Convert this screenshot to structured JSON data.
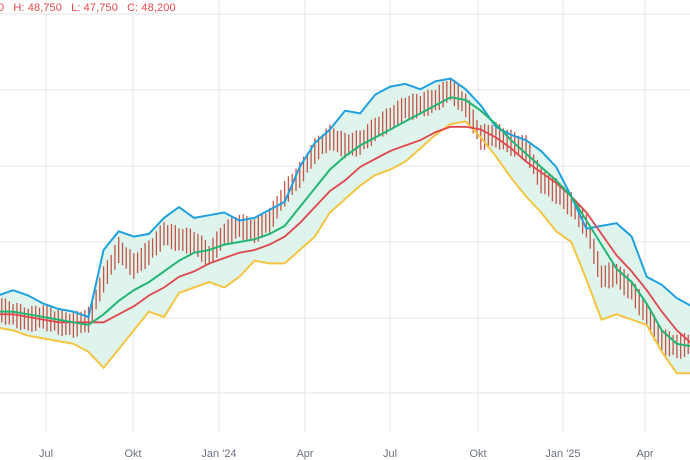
{
  "ohlc": {
    "open_tail": "0",
    "high": "H: 48,750",
    "low": "L: 47,750",
    "close": "C: 48,200"
  },
  "colors": {
    "upper_band": "#1fa1e0",
    "lower_band": "#f5c542",
    "band_fill": "#d9f2ea",
    "mid_line": "#22b573",
    "long_ma": "#e0474c",
    "candle": "#c0392b",
    "grid": "#e6e6e6"
  },
  "chart_data": {
    "type": "line",
    "title": "",
    "x_tick_labels": [
      "Jul",
      "Okt",
      "Jan '24",
      "Apr",
      "Jul",
      "Okt",
      "Jan '25",
      "Apr"
    ],
    "grid": true,
    "series": [
      {
        "role": "upper_band",
        "values": [
          3.9,
          4.1,
          3.9,
          3.6,
          3.4,
          3.3,
          3.1,
          5.6,
          6.3,
          6.1,
          6.2,
          6.8,
          7.2,
          6.8,
          6.9,
          7.0,
          6.7,
          6.8,
          7.1,
          7.4,
          8.7,
          9.6,
          10.1,
          10.8,
          10.7,
          11.4,
          11.7,
          11.8,
          11.6,
          11.9,
          12.0,
          11.6,
          11.0,
          10.2,
          9.9,
          9.7,
          9.3,
          8.7,
          7.6,
          6.4,
          6.5,
          6.6,
          6.1,
          4.6,
          4.3,
          3.8,
          3.5
        ]
      },
      {
        "role": "middle_band",
        "values": [
          3.3,
          3.3,
          3.2,
          3.1,
          3.0,
          2.9,
          2.8,
          3.2,
          3.7,
          4.1,
          4.4,
          4.8,
          5.2,
          5.5,
          5.6,
          5.8,
          5.9,
          6.0,
          6.2,
          6.5,
          7.2,
          7.9,
          8.6,
          9.1,
          9.5,
          9.8,
          10.1,
          10.4,
          10.7,
          11.0,
          11.3,
          11.2,
          10.8,
          10.3,
          9.7,
          9.2,
          8.7,
          8.2,
          7.6,
          6.7,
          5.8,
          4.9,
          4.4,
          3.6,
          2.6,
          2.1,
          2.0
        ]
      },
      {
        "role": "lower_band",
        "values": [
          2.7,
          2.6,
          2.4,
          2.3,
          2.2,
          2.1,
          1.8,
          1.2,
          1.9,
          2.6,
          3.3,
          3.1,
          4.0,
          4.2,
          4.4,
          4.2,
          4.6,
          5.2,
          5.1,
          5.1,
          5.6,
          6.1,
          7.0,
          7.5,
          8.0,
          8.4,
          8.6,
          8.9,
          9.4,
          9.9,
          10.3,
          10.4,
          9.8,
          9.1,
          8.3,
          7.6,
          7.0,
          6.3,
          5.9,
          4.5,
          3.0,
          3.2,
          3.0,
          2.8,
          1.8,
          1.0,
          1.0
        ]
      },
      {
        "role": "long_moving_average",
        "values": [
          3.2,
          3.2,
          3.1,
          3.0,
          2.9,
          2.9,
          2.9,
          2.9,
          3.2,
          3.5,
          3.9,
          4.2,
          4.6,
          4.8,
          5.1,
          5.3,
          5.5,
          5.6,
          5.8,
          6.1,
          6.6,
          7.2,
          7.8,
          8.2,
          8.7,
          9.0,
          9.3,
          9.5,
          9.7,
          10.0,
          10.2,
          10.2,
          10.1,
          9.8,
          9.4,
          8.9,
          8.5,
          8.1,
          7.6,
          7.0,
          6.2,
          5.4,
          4.8,
          4.1,
          3.3,
          2.6,
          2.1
        ]
      },
      {
        "role": "price",
        "values": [
          3.4,
          3.2,
          3.0,
          3.1,
          2.9,
          2.8,
          3.0,
          4.5,
          5.6,
          5.0,
          5.5,
          6.2,
          6.0,
          5.9,
          5.4,
          6.2,
          6.5,
          6.3,
          6.7,
          7.7,
          8.4,
          9.3,
          9.8,
          9.5,
          9.6,
          10.1,
          10.5,
          10.9,
          11.0,
          11.2,
          11.6,
          11.0,
          9.8,
          9.9,
          9.6,
          9.4,
          8.2,
          7.8,
          7.3,
          6.5,
          4.6,
          4.7,
          4.1,
          3.2,
          2.2,
          2.0,
          2.1
        ]
      }
    ]
  }
}
